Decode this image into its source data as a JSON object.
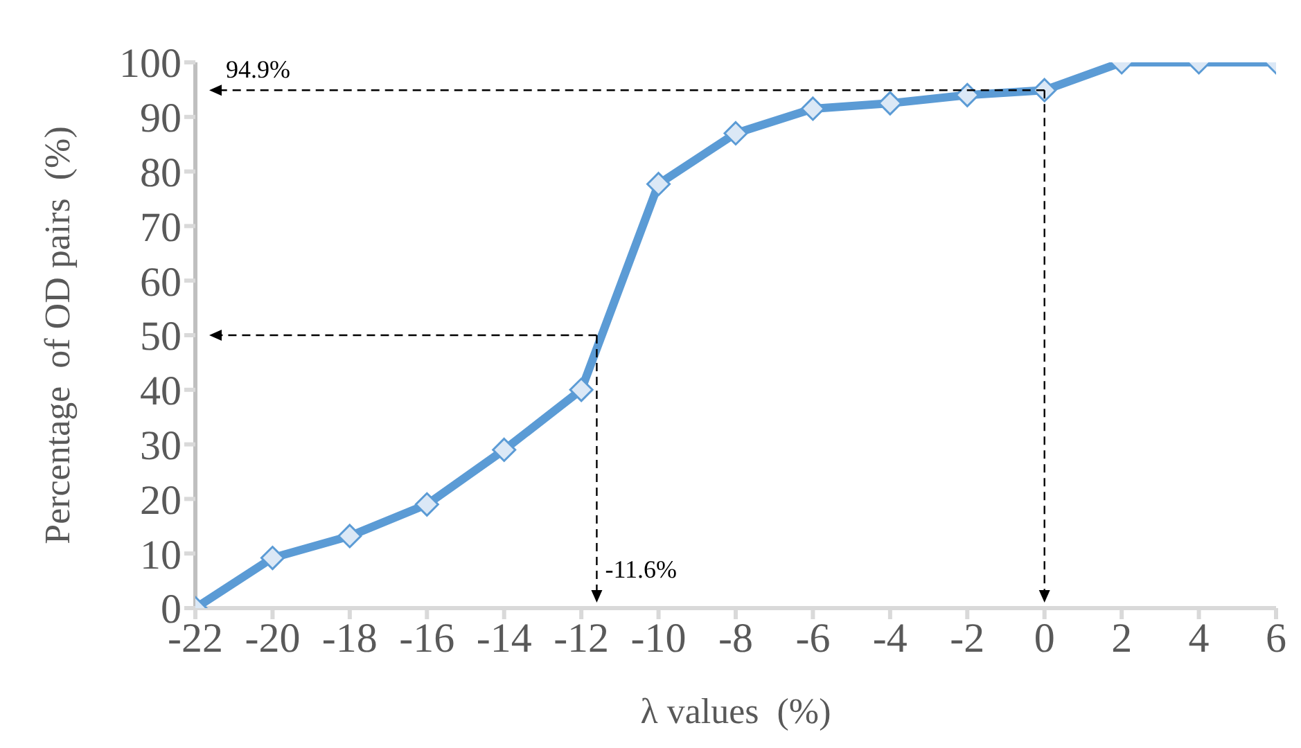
{
  "chart_data": {
    "type": "line",
    "xlabel": "λ values  (%)",
    "ylabel": "Percentage  of OD pairs  (%)",
    "x": [
      -22,
      -20,
      -18,
      -16,
      -14,
      -12,
      -10,
      -8,
      -6,
      -4,
      -2,
      0,
      2,
      4,
      6
    ],
    "series": [
      {
        "color": "#5b9bd5",
        "values": [
          0,
          9.2,
          13.2,
          19,
          29,
          40,
          77.7,
          87,
          91.5,
          92.5,
          94,
          94.9,
          100,
          100,
          100
        ]
      }
    ],
    "xlim": [
      -22,
      6
    ],
    "xticks": [
      -22,
      -20,
      -18,
      -16,
      -14,
      -12,
      -10,
      -8,
      -6,
      -4,
      -2,
      0,
      2,
      4,
      6
    ],
    "ylim": [
      0,
      100
    ],
    "yticks": [
      0,
      10,
      20,
      30,
      40,
      50,
      60,
      70,
      80,
      90,
      100
    ],
    "grid": false,
    "legend": false,
    "marker": "diamond",
    "line_style": "solid",
    "ref_lines": [
      {
        "axis": "y",
        "value": 94.9,
        "label": "94.9%",
        "color": "#000000",
        "line_style": "dashed"
      },
      {
        "axis": "x",
        "value": 0,
        "color": "#000000",
        "line_style": "dashed"
      },
      {
        "axis": "y",
        "value": 50,
        "color": "#000000",
        "line_style": "dashed"
      },
      {
        "axis": "x",
        "value": -11.6,
        "label": "-11.6%",
        "color": "#000000",
        "line_style": "dashed"
      }
    ]
  }
}
